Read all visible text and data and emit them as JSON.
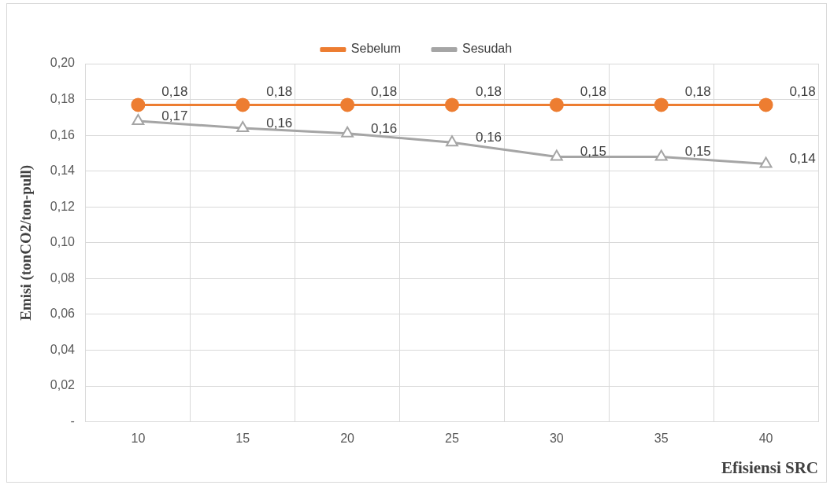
{
  "chart_data": {
    "type": "line",
    "xlabel": "Efisiensi SRC",
    "ylabel": "Emisi (tonCO2/ton-pull)",
    "categories": [
      "10",
      "15",
      "20",
      "25",
      "30",
      "35",
      "40"
    ],
    "series": [
      {
        "name": "Sebelum",
        "color": "#ed7d31",
        "marker": "circle",
        "values": [
          0.177,
          0.177,
          0.177,
          0.177,
          0.177,
          0.177,
          0.177
        ],
        "value_labels": [
          "0,18",
          "0,18",
          "0,18",
          "0,18",
          "0,18",
          "0,18",
          "0,18"
        ]
      },
      {
        "name": "Sesudah",
        "color": "#a5a5a5",
        "marker": "triangle",
        "values": [
          0.168,
          0.164,
          0.161,
          0.156,
          0.148,
          0.148,
          0.144
        ],
        "value_labels": [
          "0,17",
          "0,16",
          "0,16",
          "0,16",
          "0,15",
          "0,15",
          "0,14"
        ]
      }
    ],
    "ylim": [
      0,
      0.2
    ],
    "yticks": [
      {
        "value": 0,
        "label": "-"
      },
      {
        "value": 0.02,
        "label": "0,02"
      },
      {
        "value": 0.04,
        "label": "0,04"
      },
      {
        "value": 0.06,
        "label": "0,06"
      },
      {
        "value": 0.08,
        "label": "0,08"
      },
      {
        "value": 0.1,
        "label": "0,10"
      },
      {
        "value": 0.12,
        "label": "0,12"
      },
      {
        "value": 0.14,
        "label": "0,14"
      },
      {
        "value": 0.16,
        "label": "0,16"
      },
      {
        "value": 0.18,
        "label": "0,18"
      },
      {
        "value": 0.2,
        "label": "0,20"
      }
    ],
    "grid": true,
    "legend": "top",
    "line_style": "solid"
  }
}
